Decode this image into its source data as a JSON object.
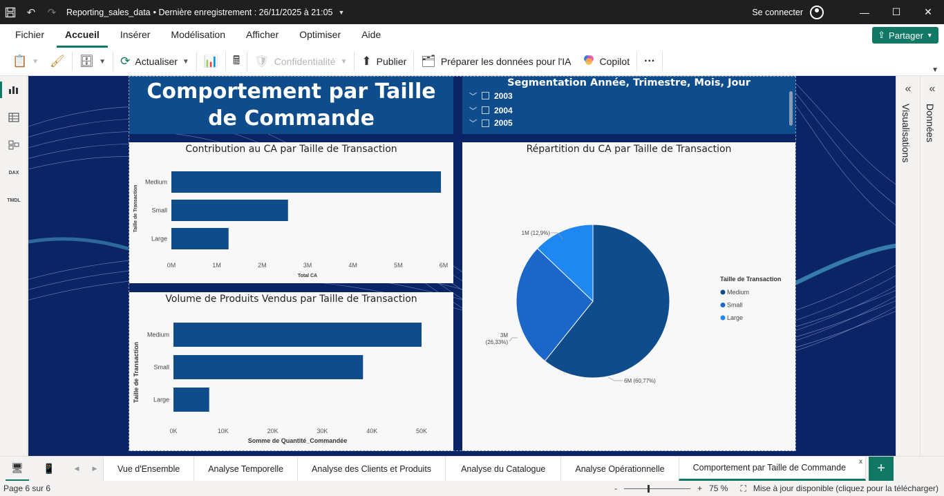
{
  "titlebar": {
    "doc_title": "Reporting_sales_data",
    "last_saved": "• Dernière enregistrement : 26/11/2025 à 21:05",
    "signin": "Se connecter"
  },
  "menu": {
    "items": [
      "Fichier",
      "Accueil",
      "Insérer",
      "Modélisation",
      "Afficher",
      "Optimiser",
      "Aide"
    ],
    "share_label": "Partager"
  },
  "ribbon": {
    "refresh": "Actualiser",
    "privacy": "Confidentialité",
    "publish": "Publier",
    "prepare_ai": "Préparer les données pour l'IA",
    "copilot": "Copilot",
    "more": "···"
  },
  "leftnav": {
    "dax_label": "DAX",
    "tmdl_label": "TMDL"
  },
  "report": {
    "title": "Comportement par Taille de Commande",
    "slicer": {
      "title": "Segmentation Année, Trimestre, Mois, Jour",
      "years": [
        "2003",
        "2004",
        "2005"
      ]
    }
  },
  "chart_data": [
    {
      "type": "bar",
      "orientation": "horizontal",
      "title": "Contribution au CA par Taille de Transaction",
      "categories": [
        "Medium",
        "Small",
        "Large"
      ],
      "values": [
        5940000,
        2570000,
        1260000
      ],
      "xlabel": "Total CA",
      "ylabel": "Taille de Transaction",
      "xlim": [
        0,
        6000000
      ],
      "ticks": [
        "0M",
        "1M",
        "2M",
        "3M",
        "4M",
        "5M",
        "6M"
      ],
      "color": "#0f4c8b"
    },
    {
      "type": "bar",
      "orientation": "horizontal",
      "title": "Volume de Produits Vendus par Taille de Transaction",
      "categories": [
        "Medium",
        "Small",
        "Large"
      ],
      "values": [
        51500,
        38200,
        7200
      ],
      "xlabel": "Somme de Quantité_Commandée",
      "ylabel": "Taille de Transaction",
      "xlim": [
        0,
        50000
      ],
      "ticks": [
        "0K",
        "10K",
        "20K",
        "30K",
        "40K",
        "50K"
      ],
      "color": "#0f4c8b"
    },
    {
      "type": "pie",
      "title": "Répartition du CA par Taille de Transaction",
      "slices": [
        {
          "label": "Medium",
          "value": 60.77,
          "text": "6M (60,77%)",
          "color": "#0f4c8b"
        },
        {
          "label": "Small",
          "value": 26.33,
          "text_line1": "3M",
          "text_line2": "(26,33%)",
          "color": "#1a67c9"
        },
        {
          "label": "Large",
          "value": 12.9,
          "text": "1M (12,9%)",
          "color": "#1e87f0"
        }
      ],
      "legend_title": "Taille de Transaction",
      "legend_placement": "right"
    }
  ],
  "tabs": {
    "items": [
      "Vue d'Ensemble",
      "Analyse Temporelle",
      "Analyse des Clients et Produits",
      "Analyse du Catalogue",
      "Analyse Opérationnelle",
      "Comportement par Taille de Commande"
    ],
    "close": "x",
    "add": "+"
  },
  "panes": {
    "visualisations": "Visualisations",
    "donnees": "Données"
  },
  "status": {
    "page": "Page 6 sur 6",
    "zoom": "75 %",
    "update": "Mise à jour disponible (cliquez pour la télécharger)"
  }
}
